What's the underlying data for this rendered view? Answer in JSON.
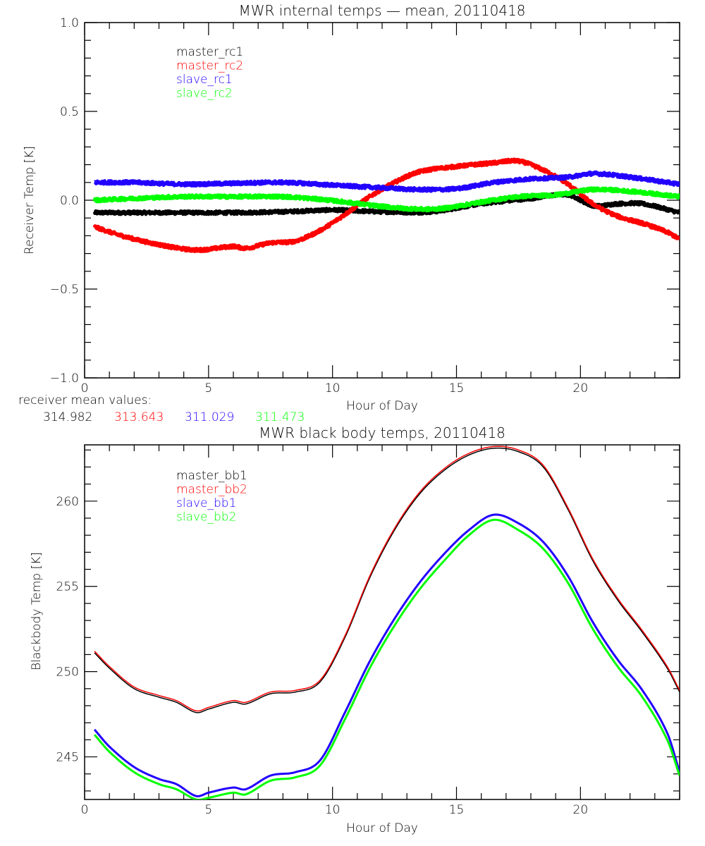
{
  "chart_data": [
    {
      "type": "line",
      "title": "MWR internal temps — mean, 20110418",
      "xlabel": "Hour of Day",
      "ylabel": "Receiver Temp [K]",
      "xlim": [
        0,
        24
      ],
      "ylim": [
        -1.0,
        1.0
      ],
      "x_ticks": [
        0,
        5,
        10,
        15,
        20
      ],
      "x_tick_labels": [
        "0",
        "5",
        "10",
        "15",
        "20"
      ],
      "x_minor_step": 1,
      "y_ticks": [
        -1.0,
        -0.5,
        0.0,
        0.5,
        1.0
      ],
      "y_tick_labels": [
        "−1.0",
        "−0.5",
        "0.0",
        "0.5",
        "1.0"
      ],
      "y_minor_step": 0.1,
      "grid": false,
      "legend_placement": "top-left",
      "noisy": true,
      "series": [
        {
          "name": "master_rc1",
          "color": "#000000",
          "x": [
            0.4,
            2,
            4,
            6,
            8,
            10,
            11,
            12,
            14,
            16,
            18,
            19.5,
            20.5,
            21.5,
            22.5,
            24
          ],
          "y": [
            -0.07,
            -0.07,
            -0.07,
            -0.07,
            -0.065,
            -0.055,
            -0.06,
            -0.065,
            -0.065,
            -0.02,
            0.01,
            0.03,
            -0.03,
            -0.02,
            -0.02,
            -0.07
          ]
        },
        {
          "name": "master_rc2",
          "color": "#ff0000",
          "x": [
            0.4,
            1.5,
            3,
            4.5,
            6,
            6.5,
            7.5,
            8.5,
            9.5,
            10.5,
            11.5,
            12.5,
            13.5,
            15,
            16.5,
            17.5,
            18.5,
            19.5,
            20.5,
            21.5,
            22.5,
            23.5,
            24
          ],
          "y": [
            -0.15,
            -0.2,
            -0.25,
            -0.28,
            -0.26,
            -0.27,
            -0.24,
            -0.23,
            -0.17,
            -0.08,
            0.02,
            0.1,
            0.16,
            0.19,
            0.21,
            0.22,
            0.17,
            0.09,
            -0.02,
            -0.09,
            -0.13,
            -0.18,
            -0.22
          ]
        },
        {
          "name": "slave_rc1",
          "color": "#2200ff",
          "x": [
            0.4,
            2,
            4,
            6,
            8,
            10,
            12,
            13.5,
            15,
            16.5,
            18,
            19.5,
            20.5,
            22,
            24
          ],
          "y": [
            0.1,
            0.1,
            0.09,
            0.095,
            0.1,
            0.085,
            0.07,
            0.06,
            0.065,
            0.1,
            0.12,
            0.13,
            0.15,
            0.13,
            0.09
          ]
        },
        {
          "name": "slave_rc2",
          "color": "#00ff00",
          "x": [
            0.4,
            2,
            4,
            6,
            8,
            9.5,
            10.5,
            12,
            13.5,
            14.5,
            16,
            17.5,
            19,
            19.5,
            20.5,
            22,
            24
          ],
          "y": [
            0.0,
            0.01,
            0.02,
            0.02,
            0.02,
            0.005,
            -0.01,
            -0.035,
            -0.05,
            -0.045,
            -0.01,
            0.02,
            0.03,
            0.04,
            0.06,
            0.05,
            0.02
          ]
        }
      ]
    },
    {
      "type": "line",
      "title": "MWR black body temps, 20110418",
      "xlabel": "Hour of Day",
      "ylabel": "Blackbody Temp [K]",
      "xlim": [
        0,
        24
      ],
      "ylim": [
        242.5,
        263.3
      ],
      "x_ticks": [
        0,
        5,
        10,
        15,
        20
      ],
      "x_tick_labels": [
        "0",
        "5",
        "10",
        "15",
        "20"
      ],
      "x_minor_step": 1,
      "y_ticks": [
        245,
        250,
        255,
        260
      ],
      "y_tick_labels": [
        "245",
        "250",
        "255",
        "260"
      ],
      "y_minor_step": 1,
      "grid": false,
      "legend_placement": "top-left",
      "series": [
        {
          "name": "master_bb1",
          "color": "#000000",
          "x": [
            0.4,
            1,
            2,
            3,
            3.7,
            4.5,
            5,
            6,
            6.5,
            7.5,
            8.5,
            9.5,
            10.5,
            11.5,
            12.5,
            13.5,
            14.5,
            15.5,
            16.5,
            17.5,
            18.5,
            19.5,
            20.5,
            21.5,
            22.5,
            23.5,
            24
          ],
          "y": [
            251.1,
            250.2,
            249.0,
            248.5,
            248.2,
            247.6,
            247.8,
            248.2,
            248.1,
            248.7,
            248.8,
            249.4,
            252.0,
            255.5,
            258.3,
            260.4,
            261.8,
            262.7,
            263.1,
            262.9,
            262.0,
            259.5,
            256.5,
            254.2,
            252.3,
            250.2,
            248.8
          ]
        },
        {
          "name": "master_bb2",
          "color": "#ff0000",
          "x": [
            0.4,
            1,
            2,
            3,
            3.7,
            4.5,
            5,
            6,
            6.5,
            7.5,
            8.5,
            9.5,
            10.5,
            11.5,
            12.5,
            13.5,
            14.5,
            15.5,
            16.5,
            17.5,
            18.5,
            19.5,
            20.5,
            21.5,
            22.5,
            23.5,
            24
          ],
          "y": [
            251.2,
            250.3,
            249.1,
            248.6,
            248.3,
            247.7,
            247.9,
            248.3,
            248.2,
            248.8,
            248.9,
            249.5,
            252.1,
            255.6,
            258.4,
            260.5,
            261.9,
            262.8,
            263.2,
            263.0,
            262.1,
            259.6,
            256.6,
            254.3,
            252.4,
            250.3,
            248.9
          ]
        },
        {
          "name": "slave_bb1",
          "color": "#2200ff",
          "x": [
            0.4,
            1,
            2,
            3,
            3.7,
            4.5,
            5,
            6,
            6.5,
            7.5,
            8.5,
            9.5,
            10.5,
            11.5,
            12.5,
            13.5,
            14.5,
            15.5,
            16.5,
            17.5,
            18.5,
            19.5,
            20.5,
            21.5,
            22.5,
            23.5,
            24
          ],
          "y": [
            246.6,
            245.6,
            244.4,
            243.7,
            243.4,
            242.7,
            242.9,
            243.2,
            243.1,
            243.9,
            244.1,
            244.8,
            247.6,
            250.6,
            253.1,
            255.2,
            256.9,
            258.3,
            259.2,
            258.7,
            257.6,
            255.6,
            252.9,
            250.7,
            248.9,
            246.4,
            244.1
          ]
        },
        {
          "name": "slave_bb2",
          "color": "#00ff00",
          "x": [
            0.4,
            1,
            2,
            3,
            3.7,
            4.5,
            5,
            6,
            6.5,
            7.5,
            8.5,
            9.5,
            10.5,
            11.5,
            12.5,
            13.5,
            14.5,
            15.5,
            16.5,
            17.5,
            18.5,
            19.5,
            20.5,
            21.5,
            22.5,
            23.5,
            24
          ],
          "y": [
            246.3,
            245.3,
            244.1,
            243.4,
            243.1,
            242.5,
            242.6,
            242.9,
            242.8,
            243.6,
            243.8,
            244.5,
            247.2,
            250.2,
            252.7,
            254.8,
            256.5,
            258.0,
            258.9,
            258.3,
            257.2,
            255.2,
            252.5,
            250.3,
            248.5,
            246.0,
            243.9
          ]
        }
      ]
    }
  ],
  "receiver_mean": {
    "label": "receiver mean values:",
    "values": [
      {
        "text": "314.982",
        "color": "#000000"
      },
      {
        "text": "313.643",
        "color": "#ff0000"
      },
      {
        "text": "311.029",
        "color": "#2200ff"
      },
      {
        "text": "311.473",
        "color": "#00ff00"
      }
    ]
  }
}
